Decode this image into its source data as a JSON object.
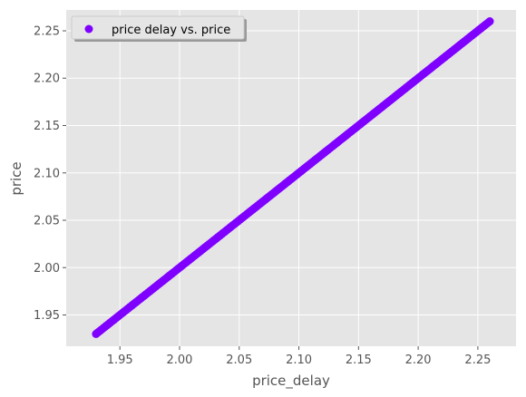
{
  "chart_data": {
    "type": "scatter",
    "title": "",
    "xlabel": "price_delay",
    "ylabel": "price",
    "xlim": [
      1.905,
      2.282
    ],
    "ylim": [
      1.917,
      2.272
    ],
    "xticks": [
      "1.95",
      "2.00",
      "2.05",
      "2.10",
      "2.15",
      "2.20",
      "2.25"
    ],
    "yticks": [
      "1.95",
      "2.00",
      "2.05",
      "2.10",
      "2.15",
      "2.20",
      "2.25"
    ],
    "grid": true,
    "legend_placement": "upper-left",
    "series": [
      {
        "name": "price delay vs. price",
        "color": "#7f00ff",
        "x_range": [
          1.93,
          2.26
        ],
        "y_range": [
          1.93,
          2.26
        ],
        "n_points": 220
      }
    ]
  }
}
